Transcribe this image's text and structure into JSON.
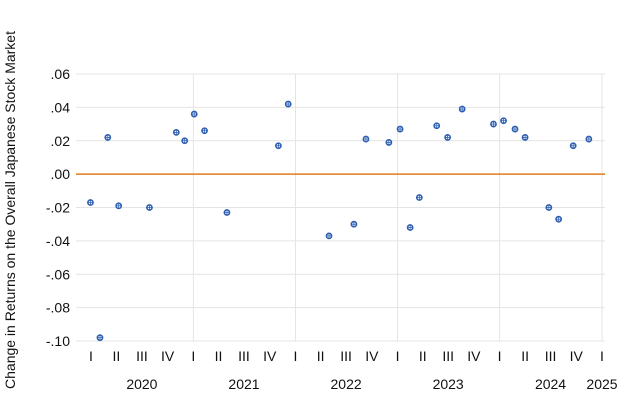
{
  "chart_data": {
    "type": "scatter",
    "title": "",
    "xlabel": "",
    "ylabel": "Change in Returns on the Overall Japanese Stock Market",
    "ylim": [
      -0.1,
      0.06
    ],
    "y_ticks": [
      ".06",
      ".04",
      ".02",
      ".00",
      "-.02",
      "-.04",
      "-.06",
      "-.08",
      "-.10"
    ],
    "y_tick_values": [
      0.06,
      0.04,
      0.02,
      0.0,
      -0.02,
      -0.04,
      -0.06,
      -0.08,
      -0.1
    ],
    "xlim": [
      "2020-01-01",
      "2025-01-01"
    ],
    "quarter_ticks": [
      {
        "label": "I",
        "date": "2020-01-01"
      },
      {
        "label": "II",
        "date": "2020-04-01"
      },
      {
        "label": "III",
        "date": "2020-07-01"
      },
      {
        "label": "IV",
        "date": "2020-10-01"
      },
      {
        "label": "I",
        "date": "2021-01-01"
      },
      {
        "label": "II",
        "date": "2021-04-01"
      },
      {
        "label": "III",
        "date": "2021-07-01"
      },
      {
        "label": "IV",
        "date": "2021-10-01"
      },
      {
        "label": "I",
        "date": "2022-01-01"
      },
      {
        "label": "II",
        "date": "2022-04-01"
      },
      {
        "label": "III",
        "date": "2022-07-01"
      },
      {
        "label": "IV",
        "date": "2022-10-01"
      },
      {
        "label": "I",
        "date": "2023-01-01"
      },
      {
        "label": "II",
        "date": "2023-04-01"
      },
      {
        "label": "III",
        "date": "2023-07-01"
      },
      {
        "label": "IV",
        "date": "2023-10-01"
      },
      {
        "label": "I",
        "date": "2024-01-01"
      },
      {
        "label": "II",
        "date": "2024-04-01"
      },
      {
        "label": "III",
        "date": "2024-07-01"
      },
      {
        "label": "IV",
        "date": "2024-10-01"
      },
      {
        "label": "I",
        "date": "2025-01-01"
      }
    ],
    "year_labels": [
      {
        "label": "2020",
        "date": "2020-07-01"
      },
      {
        "label": "2021",
        "date": "2021-07-01"
      },
      {
        "label": "2022",
        "date": "2022-07-01"
      },
      {
        "label": "2023",
        "date": "2023-07-01"
      },
      {
        "label": "2024",
        "date": "2024-07-01"
      },
      {
        "label": "2025",
        "date": "2025-01-01"
      }
    ],
    "year_gridlines": [
      "2021-01-01",
      "2022-01-01",
      "2023-01-01",
      "2024-01-01",
      "2025-01-01"
    ],
    "grid": true,
    "reference_line": {
      "y": 0.0,
      "color": "#e07b1a"
    },
    "marker_color": "#2e5fb0",
    "points": [
      {
        "x": "2019-12-30",
        "y": -0.017
      },
      {
        "x": "2020-02-02",
        "y": -0.098
      },
      {
        "x": "2020-03-01",
        "y": 0.022
      },
      {
        "x": "2020-04-09",
        "y": -0.019
      },
      {
        "x": "2020-07-28",
        "y": -0.02
      },
      {
        "x": "2020-11-01",
        "y": 0.025
      },
      {
        "x": "2020-12-01",
        "y": 0.02
      },
      {
        "x": "2021-01-04",
        "y": 0.036
      },
      {
        "x": "2021-02-10",
        "y": 0.026
      },
      {
        "x": "2021-05-01",
        "y": -0.023
      },
      {
        "x": "2021-11-01",
        "y": 0.017
      },
      {
        "x": "2021-12-06",
        "y": 0.042
      },
      {
        "x": "2022-05-01",
        "y": -0.037
      },
      {
        "x": "2022-07-29",
        "y": -0.03
      },
      {
        "x": "2022-09-10",
        "y": 0.021
      },
      {
        "x": "2022-12-01",
        "y": 0.019
      },
      {
        "x": "2023-01-10",
        "y": 0.027
      },
      {
        "x": "2023-02-15",
        "y": -0.032
      },
      {
        "x": "2023-03-20",
        "y": -0.014
      },
      {
        "x": "2023-05-21",
        "y": 0.029
      },
      {
        "x": "2023-06-29",
        "y": 0.022
      },
      {
        "x": "2023-08-20",
        "y": 0.039
      },
      {
        "x": "2023-12-10",
        "y": 0.03
      },
      {
        "x": "2024-01-15",
        "y": 0.032
      },
      {
        "x": "2024-02-25",
        "y": 0.027
      },
      {
        "x": "2024-04-01",
        "y": 0.022
      },
      {
        "x": "2024-06-25",
        "y": -0.02
      },
      {
        "x": "2024-07-30",
        "y": -0.027
      },
      {
        "x": "2024-09-20",
        "y": 0.017
      },
      {
        "x": "2024-11-15",
        "y": 0.021
      }
    ]
  }
}
